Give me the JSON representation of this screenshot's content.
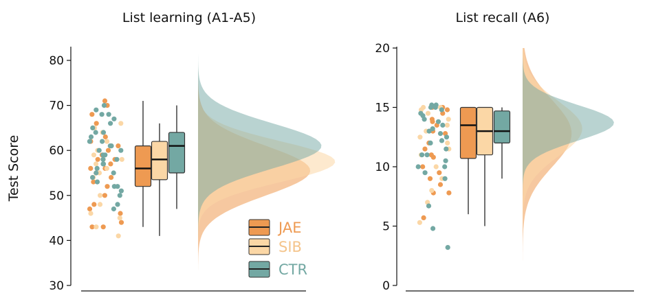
{
  "colors": {
    "JAE": "#ee9a52",
    "SIB": "#fbd7a6",
    "CTR": "#73a8a3"
  },
  "legend": [
    "JAE",
    "SIB",
    "CTR"
  ],
  "ylabel": "Test Score",
  "chart_data": [
    {
      "type": "raincloud",
      "title": "List learning (A1-A5)",
      "ylabel": "Test Score",
      "ylim": [
        30,
        82
      ],
      "yticks": [
        30,
        40,
        50,
        60,
        70,
        80
      ],
      "series": [
        {
          "name": "JAE",
          "box": {
            "min": 43,
            "q1": 52,
            "median": 56,
            "q3": 61,
            "max": 71
          },
          "density": {
            "mean": 55.5,
            "sd": 5.5
          },
          "points": [
            71,
            70,
            68,
            66,
            64,
            63,
            62,
            61,
            60,
            59,
            58,
            58,
            57,
            56,
            56,
            55,
            54,
            53,
            52,
            50,
            48,
            47,
            46,
            44,
            43,
            43
          ]
        },
        {
          "name": "SIB",
          "box": {
            "min": 41,
            "q1": 53.5,
            "median": 58,
            "q3": 62,
            "max": 66
          },
          "density": {
            "mean": 57.5,
            "sd": 4.5
          },
          "points": [
            66,
            65,
            64,
            62,
            61,
            60,
            59,
            58,
            58,
            57,
            56,
            55,
            54,
            52,
            50,
            48,
            46,
            45,
            43,
            41
          ]
        },
        {
          "name": "CTR",
          "box": {
            "min": 47,
            "q1": 55,
            "median": 61,
            "q3": 64,
            "max": 70
          },
          "density": {
            "mean": 61,
            "sd": 5
          },
          "points": [
            70,
            69,
            68,
            68,
            67,
            66,
            65,
            64,
            64,
            63,
            62,
            62,
            61,
            61,
            60,
            60,
            59,
            59,
            58,
            58,
            57,
            57,
            56,
            55,
            55,
            54,
            53,
            52,
            52,
            51,
            50,
            48,
            47
          ]
        }
      ]
    },
    {
      "type": "raincloud",
      "title": "List recall (A6)",
      "ylabel": "",
      "ylim": [
        0,
        20
      ],
      "yticks": [
        0,
        5,
        10,
        15,
        20
      ],
      "series": [
        {
          "name": "JAE",
          "box": {
            "min": 6,
            "q1": 10.7,
            "median": 13.5,
            "q3": 15,
            "max": 15
          },
          "density": {
            "mean": 12.8,
            "sd": 2.8
          },
          "points": [
            15,
            15,
            15,
            14.8,
            14.5,
            14,
            13.8,
            13.5,
            13,
            12.8,
            12,
            11.5,
            11,
            10.8,
            10,
            9.5,
            9,
            8.5,
            7.8,
            7.8,
            5.7
          ]
        },
        {
          "name": "SIB",
          "box": {
            "min": 5,
            "q1": 11,
            "median": 13,
            "q3": 15,
            "max": 15
          },
          "density": {
            "mean": 13.2,
            "sd": 2.3
          },
          "points": [
            15,
            15,
            14.8,
            14.5,
            14,
            13.5,
            13,
            12.5,
            12,
            11.5,
            11,
            10,
            9,
            8,
            7,
            5.3
          ]
        },
        {
          "name": "CTR",
          "box": {
            "min": 9,
            "q1": 12,
            "median": 13,
            "q3": 14.7,
            "max": 15
          },
          "density": {
            "mean": 13.7,
            "sd": 1.5
          },
          "points": [
            15.2,
            15.2,
            15,
            15,
            14.8,
            14.5,
            14.3,
            14,
            13.8,
            13.5,
            13.2,
            13,
            12.8,
            12.5,
            12.2,
            12,
            11.5,
            11,
            11,
            10.5,
            10,
            10,
            9.5,
            9,
            6.7,
            4.8,
            3.2
          ]
        }
      ]
    }
  ]
}
